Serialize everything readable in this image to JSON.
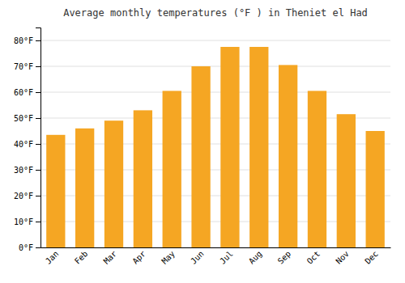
{
  "chart_data": {
    "type": "bar",
    "title": "Average monthly temperatures (°F ) in Theniet el Had",
    "categories": [
      "Jan",
      "Feb",
      "Mar",
      "Apr",
      "May",
      "Jun",
      "Jul",
      "Aug",
      "Sep",
      "Oct",
      "Nov",
      "Dec"
    ],
    "values": [
      43.5,
      46,
      49,
      53,
      60.5,
      70,
      77.5,
      77.5,
      70.5,
      60.5,
      51.5,
      45
    ],
    "color": "#F5A623",
    "ylim": [
      0,
      85
    ],
    "yticks": [
      {
        "value": 0,
        "label": "0°F"
      },
      {
        "value": 10,
        "label": "10°F"
      },
      {
        "value": 20,
        "label": "20°F"
      },
      {
        "value": 30,
        "label": "30°F"
      },
      {
        "value": 40,
        "label": "40°F"
      },
      {
        "value": 50,
        "label": "50°F"
      },
      {
        "value": 60,
        "label": "60°F"
      },
      {
        "value": 70,
        "label": "70°F"
      },
      {
        "value": 80,
        "label": "80°F"
      }
    ],
    "grid": true
  }
}
